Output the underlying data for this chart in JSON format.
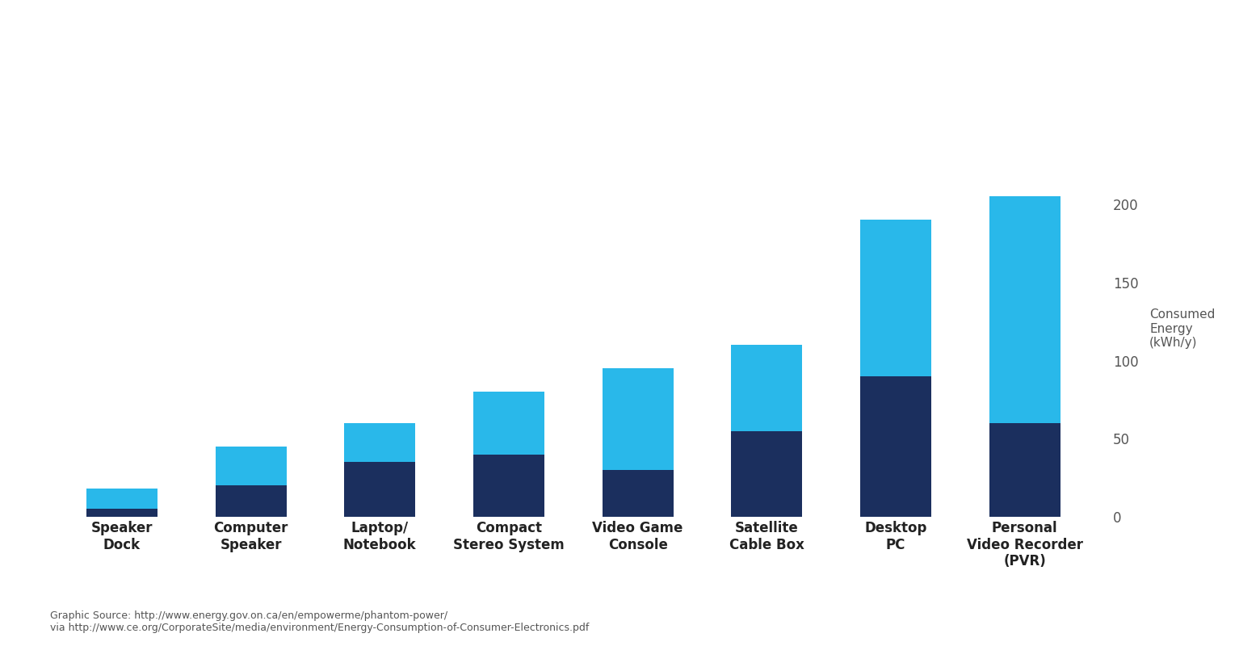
{
  "categories": [
    "Speaker\nDock",
    "Computer\nSpeaker",
    "Laptop/\nNotebook",
    "Compact\nStereo System",
    "Video Game\nConsole",
    "Satellite\nCable Box",
    "Desktop\nPC",
    "Personal\nVideo Recorder\n(PVR)"
  ],
  "dark_values": [
    5,
    20,
    35,
    40,
    30,
    55,
    90,
    60
  ],
  "light_values": [
    13,
    25,
    25,
    40,
    65,
    55,
    100,
    145
  ],
  "dark_color": "#1b2f5e",
  "light_color": "#29b8ea",
  "background_color": "#ffffff",
  "ylabel": "Consumed\nEnergy\n(kWh/y)",
  "yticks": [
    0,
    50,
    100,
    150,
    200
  ],
  "ylim": [
    0,
    215
  ],
  "grid_color": "#cccccc",
  "source_text": "Graphic Source: http://www.energy.gov.on.ca/en/empowerme/phantom-power/\nvia http://www.ce.org/CorporateSite/media/environment/Energy-Consumption-of-Consumer-Electronics.pdf",
  "tick_fontsize": 12,
  "label_fontsize": 12,
  "source_fontsize": 9,
  "ylabel_fontsize": 11
}
